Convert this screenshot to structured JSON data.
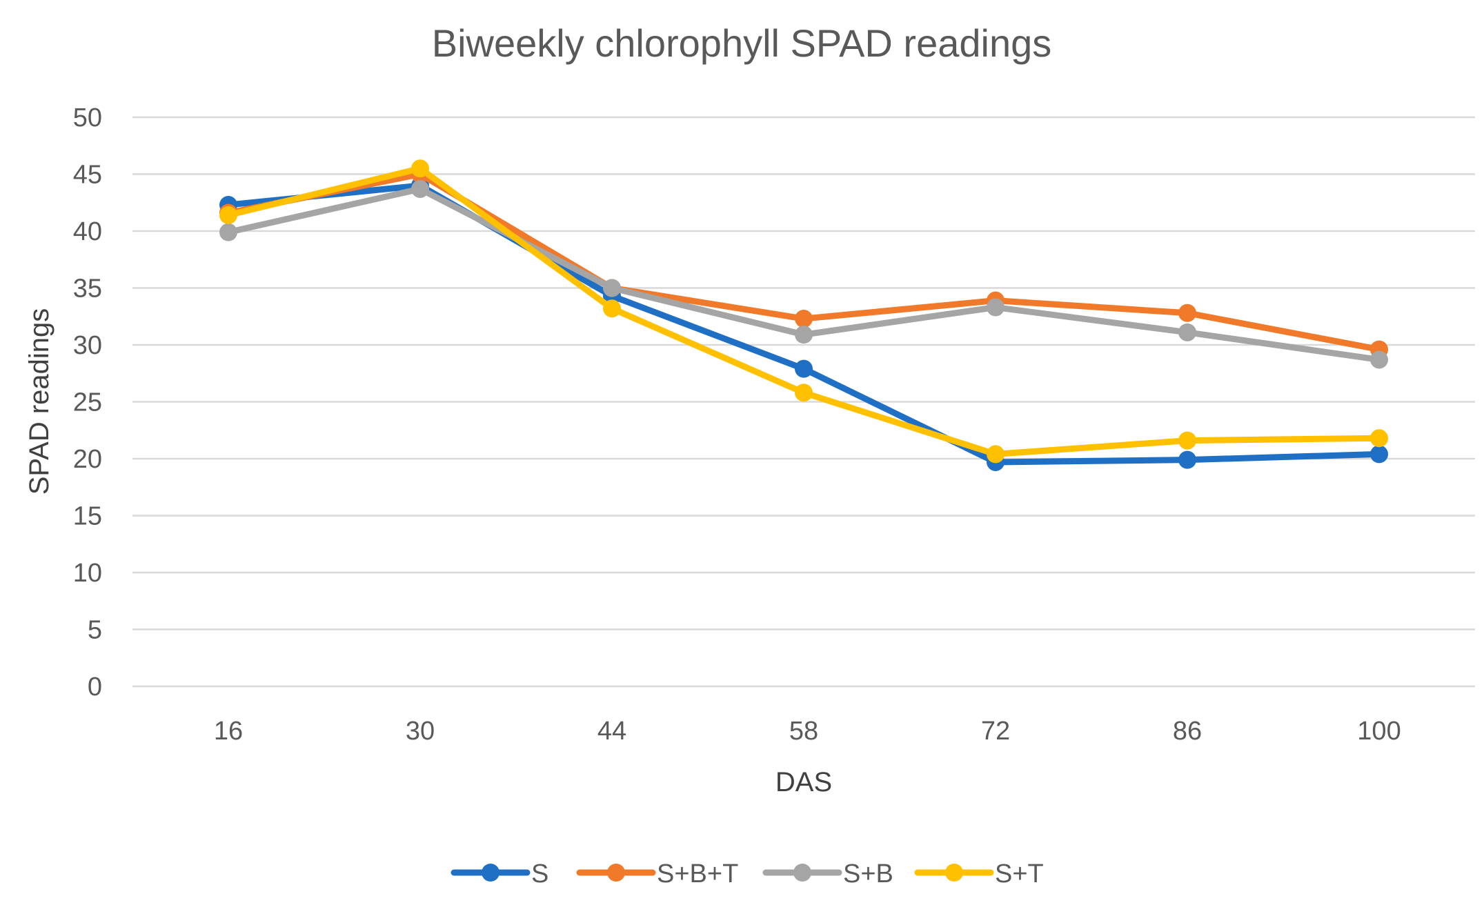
{
  "chart_data": {
    "type": "line",
    "title": "Biweekly chlorophyll SPAD readings",
    "xlabel": "DAS",
    "ylabel": "SPAD readings",
    "categories": [
      "16",
      "30",
      "44",
      "58",
      "72",
      "86",
      "100"
    ],
    "ylim": [
      0,
      50
    ],
    "ytick_step": 5,
    "yticks": [
      "0",
      "5",
      "10",
      "15",
      "20",
      "25",
      "30",
      "35",
      "40",
      "45",
      "50"
    ],
    "grid": true,
    "legend_position": "bottom",
    "series": [
      {
        "name": "S",
        "color": "#1f6fc5",
        "values": [
          42.3,
          44.0,
          34.3,
          27.9,
          19.7,
          19.9,
          20.4
        ]
      },
      {
        "name": "S+B+T",
        "color": "#f07a2a",
        "values": [
          41.6,
          45.0,
          35.0,
          32.3,
          33.9,
          32.8,
          29.6
        ]
      },
      {
        "name": "S+B",
        "color": "#a5a5a5",
        "values": [
          39.9,
          43.7,
          35.0,
          30.9,
          33.3,
          31.1,
          28.7
        ]
      },
      {
        "name": "S+T",
        "color": "#ffc000",
        "values": [
          41.4,
          45.5,
          33.2,
          25.8,
          20.4,
          21.6,
          21.8
        ]
      }
    ]
  }
}
